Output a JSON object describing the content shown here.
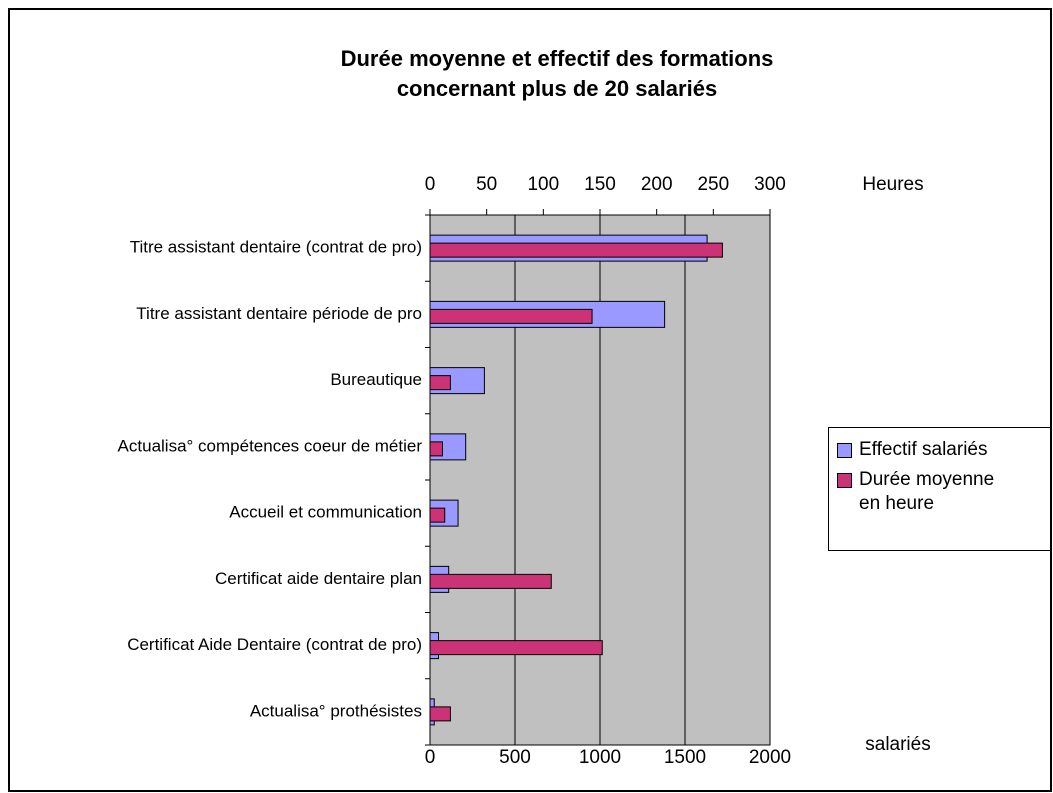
{
  "chart_data": {
    "type": "bar",
    "orientation": "horizontal",
    "title": [
      "Durée moyenne et effectif des formations",
      "concernant plus de 20 salariés"
    ],
    "xlabel": "salariés",
    "x2label": "Heures",
    "categories": [
      "Titre assistant dentaire  (contrat de pro)",
      "Titre assistant dentaire période de pro",
      "Bureautique",
      "Actualisa° compétences coeur de métier",
      "Accueil et communication",
      "Certificat aide dentaire plan",
      "Certificat Aide Dentaire (contrat de pro)",
      "Actualisa° prothésistes"
    ],
    "series": [
      {
        "name": "Effectif salariés",
        "color": "#9999ff",
        "axis": "x",
        "values": [
          1630,
          1380,
          320,
          210,
          165,
          110,
          50,
          25
        ]
      },
      {
        "name": "Durée moyenne en heure",
        "color": "#cc3377",
        "axis": "x2",
        "values": [
          258,
          143,
          18,
          11,
          13,
          107,
          152,
          18
        ]
      }
    ],
    "xlim": [
      0,
      2000
    ],
    "xticks": [
      0,
      500,
      1000,
      1500,
      2000
    ],
    "x2lim": [
      0,
      300
    ],
    "x2ticks": [
      0,
      50,
      100,
      150,
      200,
      250,
      300
    ],
    "grid": true,
    "legend": "right"
  }
}
